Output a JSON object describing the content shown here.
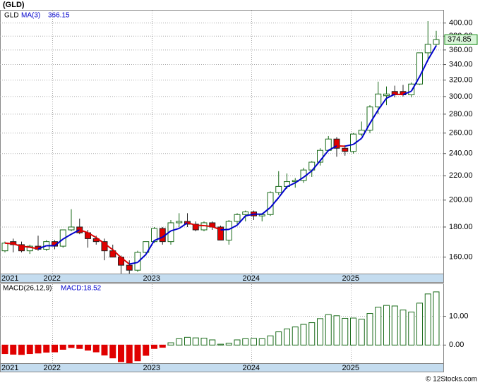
{
  "chart_data": [
    {
      "type": "candlestick",
      "title": "(GLD)",
      "ticker": "GLD",
      "categories": [
        "2021",
        null,
        null,
        null,
        null,
        null,
        "2022",
        null,
        null,
        null,
        null,
        null,
        null,
        null,
        null,
        null,
        null,
        null,
        "2023",
        null,
        null,
        null,
        null,
        null,
        null,
        null,
        null,
        null,
        null,
        null,
        "2024",
        null,
        null,
        null,
        null,
        null,
        null,
        null,
        null,
        null,
        null,
        null,
        "2025",
        null,
        null,
        null,
        null,
        null,
        null,
        null,
        null,
        null,
        null
      ],
      "open": [
        164,
        170,
        168,
        164,
        167,
        165,
        170,
        167,
        178,
        180,
        176,
        172,
        170,
        164,
        160,
        155,
        152,
        163,
        170,
        179,
        170,
        183,
        184,
        182,
        178,
        183,
        180,
        171,
        184,
        189,
        191,
        188,
        189,
        206,
        211,
        215,
        216,
        225,
        232,
        243,
        254,
        245,
        242,
        259,
        263,
        288,
        301,
        306,
        306,
        302,
        315,
        356,
        368
      ],
      "high": [
        170,
        172,
        170,
        168,
        174,
        171,
        171,
        178,
        193,
        186,
        178,
        174,
        172,
        168,
        161,
        158,
        164,
        170,
        180,
        180,
        185,
        190,
        190,
        184,
        184,
        184,
        181,
        185,
        190,
        192,
        192,
        190,
        207,
        224,
        222,
        218,
        227,
        233,
        245,
        257,
        256,
        248,
        260,
        272,
        290,
        318,
        312,
        313,
        314,
        317,
        356,
        403,
        388
      ],
      "low": [
        163,
        163,
        163,
        162,
        164,
        164,
        165,
        166,
        177,
        175,
        166,
        168,
        158,
        160,
        150,
        150,
        151,
        161,
        169,
        168,
        168,
        180,
        180,
        177,
        177,
        178,
        171,
        168,
        182,
        184,
        185,
        184,
        188,
        204,
        209,
        210,
        214,
        219,
        229,
        242,
        237,
        238,
        240,
        257,
        260,
        280,
        290,
        299,
        300,
        299,
        314,
        345,
        365
      ],
      "close": [
        169,
        168,
        164,
        167,
        165,
        170,
        167,
        178,
        180,
        176,
        172,
        170,
        164,
        160,
        155,
        152,
        163,
        170,
        179,
        170,
        183,
        184,
        182,
        178,
        183,
        180,
        171,
        184,
        189,
        191,
        188,
        189,
        206,
        211,
        215,
        216,
        225,
        232,
        243,
        254,
        245,
        242,
        259,
        263,
        288,
        303,
        303,
        302,
        302,
        315,
        356,
        368,
        374.85
      ],
      "close_label": "374.85",
      "up_color": "#1a6b1a",
      "down_color": "#e00000",
      "ma": {
        "name": "MA(3)",
        "value_label": "366.15",
        "up_color": "#0000cc",
        "down_color": "#dd0000",
        "values": [
          169,
          168.5,
          167,
          166.3,
          165.3,
          167.3,
          167.3,
          171.7,
          175,
          178,
          176,
          172.7,
          168.7,
          164.7,
          159.7,
          155.7,
          156.7,
          161.7,
          170.7,
          173,
          177.3,
          179,
          183,
          181.3,
          181,
          180.3,
          178,
          178.3,
          181.3,
          188,
          189.3,
          189.3,
          194.3,
          202,
          210.7,
          214,
          218.7,
          224.3,
          233.3,
          243,
          247.3,
          247,
          248.7,
          254.7,
          270,
          284.7,
          298,
          302.7,
          302.3,
          306.3,
          324.3,
          346.3,
          366.15
        ]
      },
      "ylim": [
        150,
        420
      ],
      "log": true,
      "grid": true,
      "yticks": [
        {
          "value": 160,
          "label": "160.00"
        },
        {
          "value": 180,
          "label": "180.00"
        },
        {
          "value": 200,
          "label": "200.00"
        },
        {
          "value": 220,
          "label": "220.00"
        },
        {
          "value": 240,
          "label": "240.00"
        },
        {
          "value": 260,
          "label": "260.00"
        },
        {
          "value": 280,
          "label": "280.00"
        },
        {
          "value": 300,
          "label": "300.00"
        },
        {
          "value": 320,
          "label": "320.00"
        },
        {
          "value": 340,
          "label": "340.00"
        },
        {
          "value": 360,
          "label": "360.00"
        },
        {
          "value": 380,
          "label": "380.00"
        },
        {
          "value": 400,
          "label": "400.00"
        }
      ]
    },
    {
      "type": "bar",
      "title": "MACD(26,12,9)",
      "value_label": "MACD:18.52",
      "categories": [
        "2021",
        null,
        null,
        null,
        null,
        null,
        "2022",
        null,
        null,
        null,
        null,
        null,
        null,
        null,
        null,
        null,
        null,
        null,
        "2023",
        null,
        null,
        null,
        null,
        null,
        null,
        null,
        null,
        null,
        null,
        null,
        "2024",
        null,
        null,
        null,
        null,
        null,
        null,
        null,
        null,
        null,
        null,
        null,
        "2025",
        null,
        null,
        null,
        null,
        null,
        null,
        null,
        null,
        null,
        null
      ],
      "values": [
        -3,
        -3.2,
        -3.3,
        -3,
        -2.8,
        -2.5,
        -2.4,
        -1.5,
        -0.9,
        -1.2,
        -1.8,
        -2.4,
        -3.5,
        -4.5,
        -5.8,
        -6.2,
        -5.5,
        -3.6,
        -1.2,
        -0.8,
        0.8,
        2.2,
        2.7,
        2.5,
        2.4,
        1.8,
        0.3,
        0.6,
        1.8,
        2.2,
        2.3,
        2.2,
        3.2,
        4.6,
        5.6,
        6.3,
        7.2,
        7.8,
        9.2,
        10.6,
        10.2,
        9.3,
        9.4,
        9.0,
        11.0,
        13.2,
        13.8,
        13.6,
        12.2,
        11.5,
        14.6,
        17.8,
        18.52
      ],
      "pos_color": "#1a6b1a",
      "neg_color": "#e00000",
      "ylim": [
        -6.3,
        21.2
      ],
      "grid": true,
      "yticks": [
        {
          "value": 0,
          "label": "0.00"
        },
        {
          "value": 10,
          "label": "10.00"
        }
      ]
    }
  ],
  "footer": "© 12Stocks.com"
}
